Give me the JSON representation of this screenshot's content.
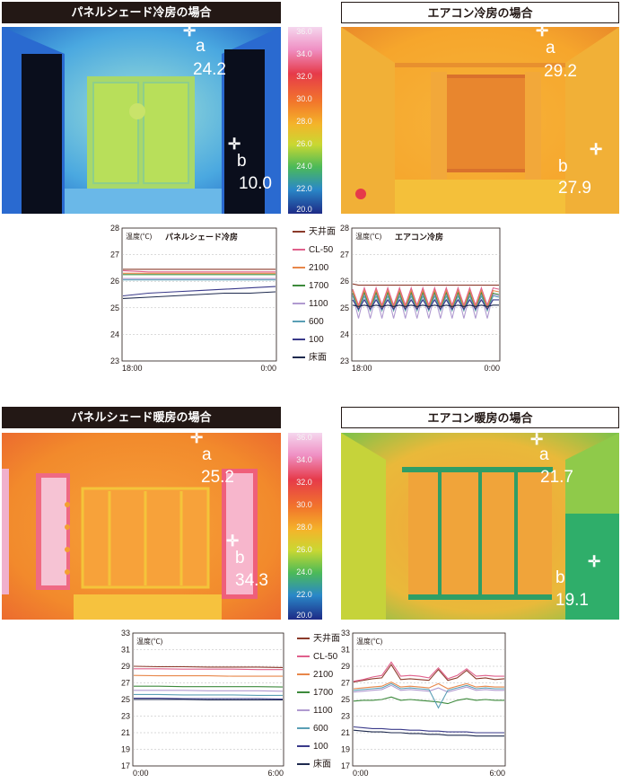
{
  "headers": {
    "cool_panel": "パネルシェード冷房の場合",
    "cool_ac": "エアコン冷房の場合",
    "heat_panel": "パネルシェード暖房の場合",
    "heat_ac": "エアコン暖房の場合"
  },
  "thermograms": {
    "cool_panel": {
      "a_label": "a",
      "a_value": "24.2",
      "b_label": "b",
      "b_value": "10.0"
    },
    "cool_ac": {
      "a_label": "a",
      "a_value": "29.2",
      "b_label": "b",
      "b_value": "27.9"
    },
    "heat_panel": {
      "a_label": "a",
      "a_value": "25.2",
      "b_label": "b",
      "b_value": "34.3"
    },
    "heat_ac": {
      "a_label": "a",
      "a_value": "21.7",
      "b_label": "b",
      "b_value": "19.1"
    }
  },
  "color_scale": {
    "labels": [
      "36.0",
      "34.0",
      "32.0",
      "30.0",
      "28.0",
      "26.0",
      "24.0",
      "22.0",
      "20.0"
    ],
    "colors": [
      "#f5d7ee",
      "#ef90c4",
      "#e63a4a",
      "#f2762b",
      "#f4b42a",
      "#c9d832",
      "#4cba58",
      "#2a88c8",
      "#1d2a86"
    ]
  },
  "legend": {
    "items": [
      {
        "name": "天井面",
        "color": "#8b3a2a"
      },
      {
        "name": "CL-50",
        "color": "#e0608c"
      },
      {
        "name": "2100",
        "color": "#e8874a"
      },
      {
        "name": "1700",
        "color": "#3d8a3c"
      },
      {
        "name": "1100",
        "color": "#b09ad0"
      },
      {
        "name": "600",
        "color": "#5a9fb5"
      },
      {
        "name": "100",
        "color": "#3a3a8a"
      },
      {
        "name": "床面",
        "color": "#1e2a4e"
      }
    ]
  },
  "chart_data": [
    {
      "type": "line",
      "title": "パネルシェード冷房",
      "ylabel": "温度(℃)",
      "ylim": [
        23,
        28
      ],
      "yticks": [
        23,
        24,
        25,
        26,
        27,
        28
      ],
      "xticks": [
        "18:00",
        "0:00"
      ],
      "grid": true,
      "series": [
        {
          "name": "天井面",
          "values": [
            26.45,
            26.45,
            26.45,
            26.45,
            26.45,
            26.45,
            26.45
          ]
        },
        {
          "name": "CL-50",
          "values": [
            26.4,
            26.35,
            26.35,
            26.35,
            26.35,
            26.35,
            26.35
          ]
        },
        {
          "name": "2100",
          "values": [
            26.3,
            26.3,
            26.3,
            26.3,
            26.3,
            26.3,
            26.3
          ]
        },
        {
          "name": "1700",
          "values": [
            26.25,
            26.25,
            26.25,
            26.25,
            26.25,
            26.25,
            26.25
          ]
        },
        {
          "name": "1100",
          "values": [
            26.1,
            26.1,
            26.1,
            26.1,
            26.1,
            26.1,
            26.1
          ]
        },
        {
          "name": "600",
          "values": [
            26.05,
            26.05,
            26.05,
            26.05,
            26.05,
            26.05,
            26.05
          ]
        },
        {
          "name": "100",
          "values": [
            25.45,
            25.55,
            25.6,
            25.65,
            25.7,
            25.75,
            25.8
          ]
        },
        {
          "name": "床面",
          "values": [
            25.35,
            25.4,
            25.45,
            25.5,
            25.55,
            25.55,
            25.6
          ]
        }
      ]
    },
    {
      "type": "line",
      "title": "エアコン冷房",
      "ylabel": "温度(℃)",
      "ylim": [
        23,
        28
      ],
      "yticks": [
        23,
        24,
        25,
        26,
        27,
        28
      ],
      "xticks": [
        "18:00",
        "0:00"
      ],
      "grid": true,
      "series": [
        {
          "name": "天井面",
          "values": [
            25.9,
            25.85,
            25.85,
            25.85,
            25.85,
            25.85,
            25.85,
            25.85,
            25.85,
            25.85,
            25.85,
            25.85,
            25.85,
            25.85,
            25.85,
            25.85,
            25.85,
            25.85,
            25.85,
            25.85,
            25.85,
            25.85,
            25.85,
            25.85,
            25.85,
            25.85
          ]
        },
        {
          "name": "CL-50",
          "values": [
            25.7,
            25.1,
            25.75,
            25.1,
            25.75,
            25.1,
            25.75,
            25.1,
            25.75,
            25.1,
            25.75,
            25.1,
            25.75,
            25.1,
            25.75,
            25.1,
            25.75,
            25.1,
            25.75,
            25.1,
            25.75,
            25.1,
            25.75,
            25.1,
            25.75,
            25.7
          ]
        },
        {
          "name": "2100",
          "values": [
            25.65,
            25.0,
            25.65,
            25.0,
            25.65,
            25.0,
            25.65,
            25.0,
            25.65,
            25.0,
            25.65,
            25.0,
            25.65,
            25.0,
            25.65,
            25.0,
            25.65,
            25.0,
            25.65,
            25.0,
            25.65,
            25.0,
            25.65,
            25.0,
            25.65,
            25.6
          ]
        },
        {
          "name": "1700",
          "values": [
            25.55,
            24.9,
            25.55,
            24.9,
            25.55,
            24.9,
            25.55,
            24.9,
            25.55,
            24.9,
            25.55,
            24.9,
            25.55,
            24.9,
            25.55,
            24.9,
            25.55,
            24.9,
            25.55,
            24.9,
            25.55,
            24.9,
            25.55,
            24.9,
            25.55,
            25.5
          ]
        },
        {
          "name": "1100",
          "values": [
            25.5,
            24.6,
            25.5,
            24.6,
            25.5,
            24.6,
            25.5,
            24.6,
            25.5,
            24.6,
            25.5,
            24.6,
            25.5,
            24.6,
            25.5,
            24.6,
            25.5,
            24.6,
            25.5,
            24.6,
            25.5,
            24.6,
            25.5,
            24.6,
            25.5,
            25.45
          ]
        },
        {
          "name": "600",
          "values": [
            25.45,
            24.9,
            25.45,
            24.9,
            25.45,
            24.9,
            25.45,
            24.9,
            25.45,
            24.9,
            25.45,
            24.9,
            25.45,
            24.9,
            25.45,
            24.9,
            25.45,
            24.9,
            25.45,
            24.9,
            25.45,
            24.9,
            25.45,
            24.9,
            25.45,
            25.4
          ]
        },
        {
          "name": "100",
          "values": [
            25.3,
            24.95,
            25.3,
            24.95,
            25.3,
            24.95,
            25.3,
            24.95,
            25.3,
            24.95,
            25.3,
            24.95,
            25.3,
            24.95,
            25.3,
            24.95,
            25.3,
            24.95,
            25.3,
            24.95,
            25.3,
            24.95,
            25.3,
            24.95,
            25.3,
            25.3
          ]
        },
        {
          "name": "床面",
          "values": [
            25.1,
            25.05,
            25.1,
            25.05,
            25.1,
            25.05,
            25.1,
            25.05,
            25.1,
            25.05,
            25.1,
            25.05,
            25.1,
            25.05,
            25.1,
            25.05,
            25.1,
            25.05,
            25.1,
            25.05,
            25.1,
            25.05,
            25.1,
            25.05,
            25.1,
            25.1
          ]
        }
      ]
    },
    {
      "type": "line",
      "title": "",
      "ylabel": "温度(℃)",
      "ylim": [
        17,
        33
      ],
      "yticks": [
        17,
        19,
        21,
        23,
        25,
        27,
        29,
        31,
        33
      ],
      "xticks": [
        "0:00",
        "6:00"
      ],
      "grid": true,
      "series": [
        {
          "name": "天井面",
          "values": [
            29.0,
            28.95,
            28.95,
            28.9,
            28.9,
            28.9,
            28.85
          ]
        },
        {
          "name": "CL-50",
          "values": [
            28.7,
            28.7,
            28.65,
            28.65,
            28.65,
            28.6,
            28.6
          ]
        },
        {
          "name": "2100",
          "values": [
            27.9,
            27.85,
            27.85,
            27.85,
            27.8,
            27.8,
            27.8
          ]
        },
        {
          "name": "1700",
          "values": [
            26.6,
            26.6,
            26.55,
            26.55,
            26.55,
            26.55,
            26.5
          ]
        },
        {
          "name": "1100",
          "values": [
            26.1,
            26.1,
            26.1,
            26.05,
            26.05,
            26.05,
            26.0
          ]
        },
        {
          "name": "600",
          "values": [
            25.6,
            25.6,
            25.55,
            25.55,
            25.55,
            25.5,
            25.5
          ]
        },
        {
          "name": "100",
          "values": [
            25.15,
            25.15,
            25.1,
            25.1,
            25.1,
            25.1,
            25.05
          ]
        },
        {
          "name": "床面",
          "values": [
            25.0,
            25.0,
            25.0,
            24.95,
            24.95,
            24.95,
            24.95
          ]
        }
      ]
    },
    {
      "type": "line",
      "title": "",
      "ylabel": "温度(℃)",
      "ylim": [
        17,
        33
      ],
      "yticks": [
        17,
        19,
        21,
        23,
        25,
        27,
        29,
        31,
        33
      ],
      "xticks": [
        "0:00",
        "6:00"
      ],
      "grid": true,
      "series": [
        {
          "name": "天井面",
          "values": [
            27.1,
            27.3,
            27.5,
            27.6,
            29.2,
            27.4,
            27.5,
            27.4,
            27.3,
            28.6,
            27.3,
            27.6,
            28.5,
            27.5,
            27.6,
            27.4,
            27.5
          ]
        },
        {
          "name": "CL-50",
          "values": [
            27.2,
            27.4,
            27.7,
            27.9,
            29.5,
            27.8,
            27.9,
            27.8,
            27.6,
            28.8,
            27.5,
            27.9,
            28.7,
            27.8,
            27.9,
            27.8,
            27.8
          ]
        },
        {
          "name": "2100",
          "values": [
            26.3,
            26.4,
            26.5,
            26.6,
            27.1,
            26.5,
            26.6,
            26.5,
            26.4,
            26.9,
            26.3,
            26.6,
            26.9,
            26.5,
            26.6,
            26.5,
            26.5
          ]
        },
        {
          "name": "1700",
          "values": [
            24.8,
            24.9,
            24.9,
            25.0,
            25.3,
            24.9,
            25.0,
            24.9,
            24.8,
            24.7,
            24.5,
            24.9,
            25.1,
            24.9,
            25.0,
            24.9,
            24.9
          ]
        },
        {
          "name": "1100",
          "values": [
            25.9,
            26.0,
            26.1,
            26.2,
            26.7,
            26.1,
            26.2,
            26.1,
            26.0,
            26.4,
            25.9,
            26.2,
            26.5,
            26.1,
            26.2,
            26.1,
            26.1
          ]
        },
        {
          "name": "600",
          "values": [
            26.1,
            26.2,
            26.3,
            26.4,
            26.9,
            26.3,
            26.4,
            26.3,
            26.2,
            24.0,
            26.1,
            26.4,
            26.7,
            26.3,
            26.4,
            26.3,
            26.3
          ]
        },
        {
          "name": "100",
          "values": [
            21.7,
            21.6,
            21.5,
            21.5,
            21.4,
            21.4,
            21.3,
            21.3,
            21.2,
            21.2,
            21.1,
            21.1,
            21.1,
            21.0,
            21.0,
            21.0,
            21.0
          ]
        },
        {
          "name": "床面",
          "values": [
            21.3,
            21.2,
            21.1,
            21.1,
            21.0,
            21.0,
            20.9,
            20.9,
            20.8,
            20.8,
            20.7,
            20.7,
            20.7,
            20.6,
            20.6,
            20.6,
            20.6
          ]
        }
      ]
    }
  ]
}
